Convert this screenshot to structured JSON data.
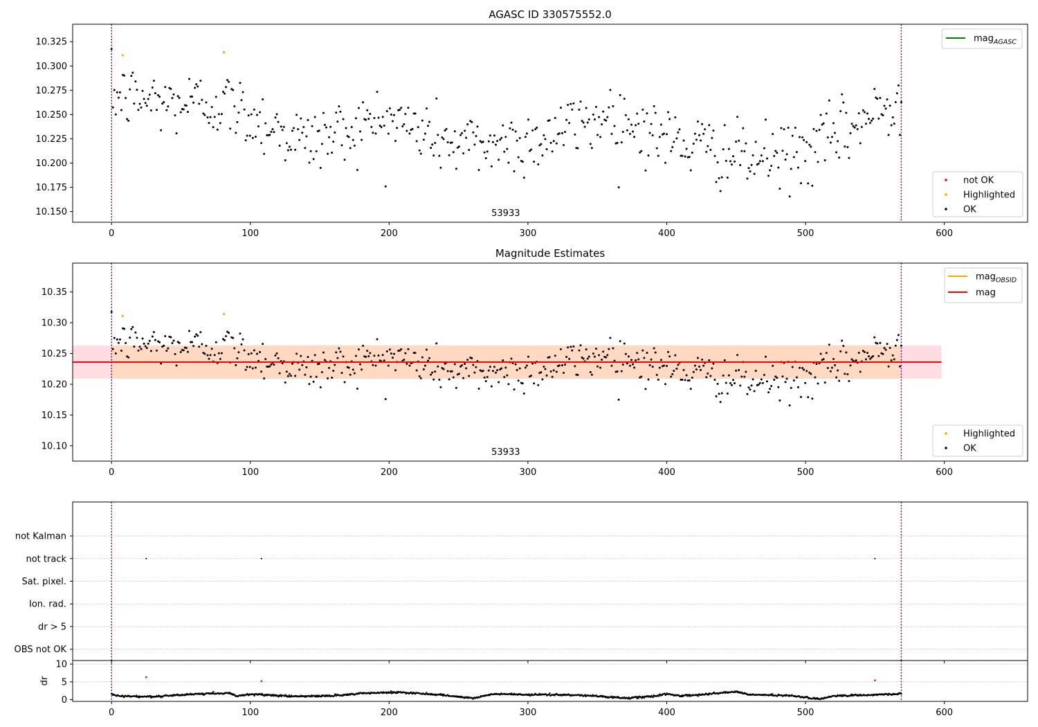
{
  "chart_data": [
    {
      "type": "scatter",
      "title": "AGASC ID 330575552.0",
      "xlim": [
        -28,
        660
      ],
      "ylim": [
        10.139,
        10.343
      ],
      "xticks": [
        0,
        100,
        200,
        300,
        400,
        500,
        600
      ],
      "yticks": [
        10.15,
        10.175,
        10.2,
        10.225,
        10.25,
        10.275,
        10.3,
        10.325
      ],
      "grid": false,
      "obsid_label": "53933",
      "obsid_boundaries": [
        0,
        569
      ],
      "legend": [
        {
          "label": "mag",
          "sub": "AGASC",
          "color": "#008000",
          "marker": "line"
        }
      ],
      "legend_placement": "top-right",
      "legend2": [
        {
          "label": "not OK",
          "color": "#ff0000",
          "marker": "dot"
        },
        {
          "label": "Highlighted",
          "color": "#ffa500",
          "marker": "dot"
        },
        {
          "label": "OK",
          "color": "#000000",
          "marker": "dot"
        }
      ],
      "legend2_placement": "bottom-right",
      "series": [
        {
          "name": "OK",
          "color": "#000000",
          "n_points": 560,
          "x_range": [
            0,
            569
          ],
          "trend_knots": [
            [
              0,
              10.27
            ],
            [
              40,
              10.262
            ],
            [
              80,
              10.262
            ],
            [
              140,
              10.222
            ],
            [
              200,
              10.246
            ],
            [
              250,
              10.218
            ],
            [
              300,
              10.222
            ],
            [
              360,
              10.25
            ],
            [
              400,
              10.225
            ],
            [
              460,
              10.203
            ],
            [
              500,
              10.21
            ],
            [
              569,
              10.265
            ]
          ],
          "scatter_sd": 0.018
        },
        {
          "name": "Highlighted",
          "color": "#ffa500",
          "points": [
            [
              8,
              10.311
            ],
            [
              81,
              10.314
            ]
          ]
        }
      ]
    },
    {
      "type": "scatter",
      "title": "Magnitude Estimates",
      "xlim": [
        -28,
        660
      ],
      "ylim": [
        10.075,
        10.397
      ],
      "xticks": [
        0,
        100,
        200,
        300,
        400,
        500,
        600
      ],
      "yticks": [
        10.1,
        10.15,
        10.2,
        10.25,
        10.3,
        10.35
      ],
      "grid": false,
      "obsid_label": "53933",
      "obsid_boundaries": [
        0,
        569
      ],
      "mag": 10.236,
      "mag_band": [
        10.209,
        10.263
      ],
      "mag_obsid": 10.236,
      "mag_obsid_band": [
        10.209,
        10.263
      ],
      "legend": [
        {
          "label": "mag",
          "sub": "OBSID",
          "color": "#ffa500",
          "marker": "line"
        },
        {
          "label": "mag",
          "sub": "",
          "color": "#ff0000",
          "marker": "line"
        }
      ],
      "legend_placement": "top-right",
      "legend2": [
        {
          "label": "Highlighted",
          "color": "#ffa500",
          "marker": "dot"
        },
        {
          "label": "OK",
          "color": "#000000",
          "marker": "dot"
        }
      ],
      "legend2_placement": "bottom-right",
      "series": [
        {
          "name": "OK",
          "same_as_panel": 1
        },
        {
          "name": "Highlighted",
          "color": "#ffa500",
          "points": [
            [
              8,
              10.311
            ],
            [
              81,
              10.314
            ]
          ]
        }
      ]
    },
    {
      "type": "scatter",
      "xlim": [
        -28,
        660
      ],
      "ylim": [
        -0.5,
        6.5
      ],
      "categories": [
        "not Kalman",
        "not track",
        "Sat. pixel.",
        "Ion. rad.",
        "dr > 5",
        "OBS not OK"
      ],
      "grid": true,
      "obsid_boundaries": [
        0,
        569
      ],
      "series": [
        {
          "name": "dr > 5",
          "color": "#000000",
          "points": [
            [
              25,
              4
            ],
            [
              108,
              4
            ],
            [
              550,
              4
            ]
          ]
        }
      ]
    },
    {
      "type": "scatter",
      "xlim": [
        -28,
        660
      ],
      "ylim": [
        -0.5,
        11
      ],
      "xticks": [
        0,
        100,
        200,
        300,
        400,
        500,
        600
      ],
      "yticks": [
        0,
        5,
        10
      ],
      "ylabel": "dr",
      "grid": true,
      "obsid_boundaries": [
        0,
        569
      ],
      "series": [
        {
          "name": "dr",
          "color": "#000000",
          "n_points": 1140,
          "x_range": [
            0,
            569
          ],
          "trend_knots": [
            [
              0,
              1.6
            ],
            [
              5,
              1.0
            ],
            [
              30,
              0.8
            ],
            [
              60,
              1.6
            ],
            [
              85,
              1.8
            ],
            [
              90,
              1.0
            ],
            [
              100,
              1.5
            ],
            [
              120,
              1.1
            ],
            [
              140,
              0.9
            ],
            [
              160,
              1.1
            ],
            [
              180,
              1.8
            ],
            [
              200,
              2.0
            ],
            [
              220,
              1.8
            ],
            [
              240,
              1.2
            ],
            [
              260,
              0.4
            ],
            [
              275,
              1.6
            ],
            [
              300,
              1.4
            ],
            [
              330,
              1.3
            ],
            [
              350,
              1.0
            ],
            [
              370,
              0.4
            ],
            [
              390,
              0.9
            ],
            [
              400,
              1.6
            ],
            [
              410,
              1.0
            ],
            [
              430,
              1.6
            ],
            [
              450,
              2.2
            ],
            [
              460,
              1.4
            ],
            [
              490,
              1.1
            ],
            [
              510,
              0.2
            ],
            [
              520,
              1.0
            ],
            [
              569,
              1.6
            ]
          ]
        },
        {
          "name": "dr outliers",
          "color": "#ff0000",
          "points": [
            [
              25,
              6.3
            ],
            [
              108,
              5.2
            ],
            [
              550,
              5.4
            ]
          ]
        }
      ]
    }
  ]
}
